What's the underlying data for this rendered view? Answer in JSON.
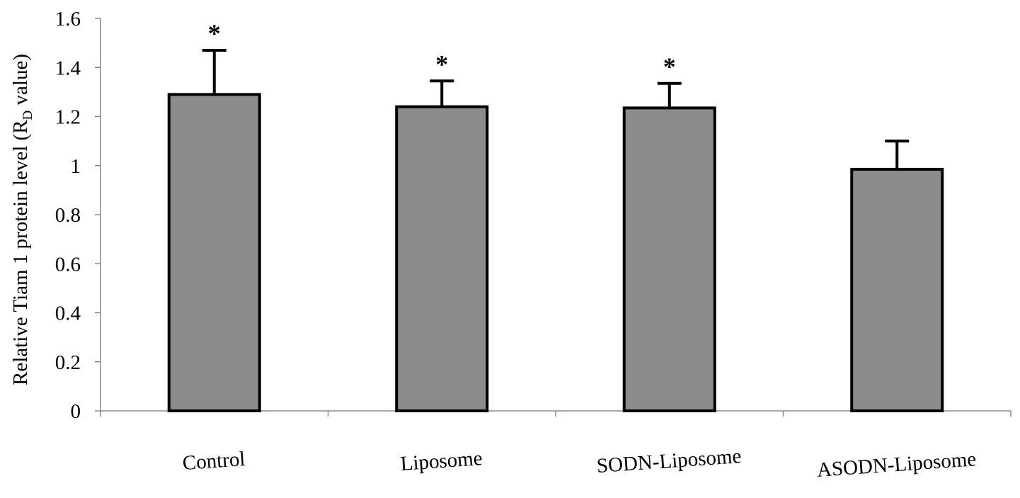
{
  "chart_data": {
    "type": "bar",
    "categories": [
      "Control",
      "Liposome",
      "SODN-Liposome",
      "ASODN-Liposome"
    ],
    "values": [
      1.29,
      1.24,
      1.235,
      0.985
    ],
    "error_bars": [
      0.18,
      0.105,
      0.1,
      0.115
    ],
    "significance_marks": [
      "*",
      "*",
      "*",
      ""
    ],
    "ylabel": {
      "prefix": "Relative Tiam 1 protein level (R",
      "subscript": "D",
      "suffix": " value)"
    },
    "ylim": [
      0,
      1.6
    ],
    "yticks": [
      0,
      0.2,
      0.4,
      0.6,
      0.8,
      1,
      1.2,
      1.4,
      1.6
    ],
    "ytick_labels": [
      "0",
      "0.2",
      "0.4",
      "0.6",
      "0.8",
      "1",
      "1.2",
      "1.4",
      "1.6"
    ],
    "grid": false,
    "legend": "none",
    "bar_color": "#8c8c8c",
    "edge_color": "#000000"
  }
}
